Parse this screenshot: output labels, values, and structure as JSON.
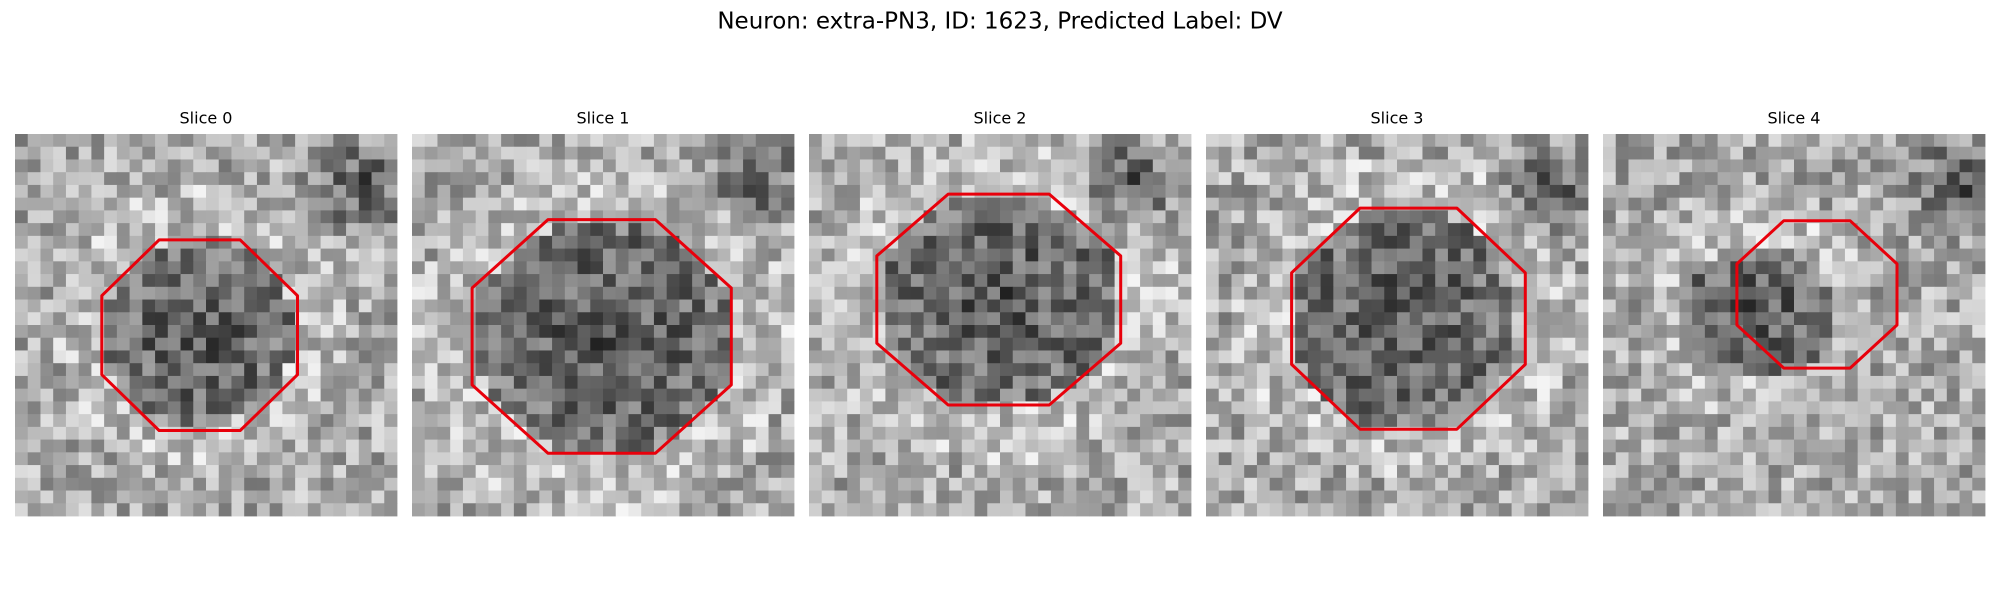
{
  "title": "Neuron: extra-PN3, ID: 1623, Predicted Label: DV",
  "panels": [
    {
      "title": "Slice 0"
    },
    {
      "title": "Slice 1"
    },
    {
      "title": "Slice 2"
    },
    {
      "title": "Slice 3"
    },
    {
      "title": "Slice 4"
    }
  ]
}
